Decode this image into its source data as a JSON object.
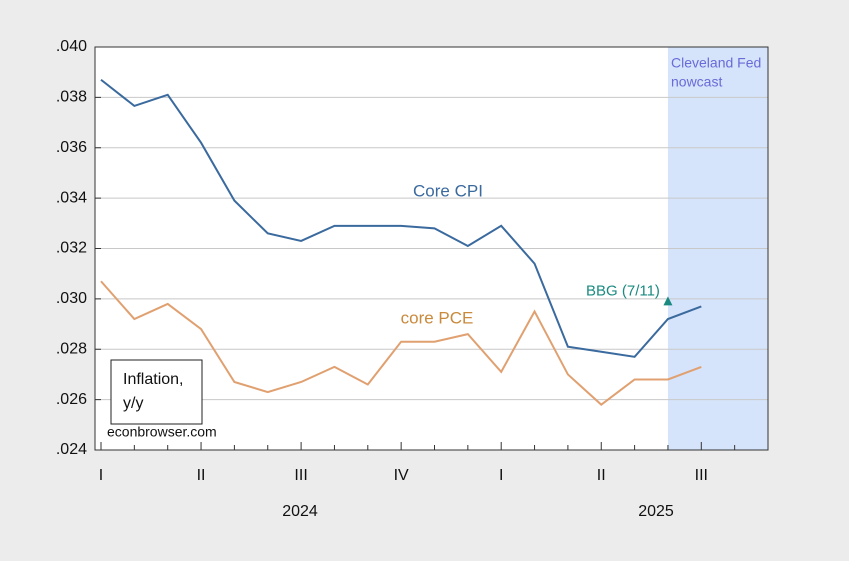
{
  "chart_data": {
    "type": "line",
    "categories": [
      "I",
      null,
      null,
      "II",
      null,
      null,
      "III",
      null,
      null,
      "IV",
      null,
      null,
      "I",
      null,
      null,
      "II",
      null,
      null,
      "III",
      null,
      null
    ],
    "year_labels": [
      "2024",
      "2025"
    ],
    "series": [
      {
        "name": "Core CPI",
        "color": "#3a6a9e",
        "values": [
          0.0387,
          0.03766,
          0.0381,
          0.0362,
          0.0339,
          0.0326,
          0.0323,
          0.0329,
          0.0329,
          0.0329,
          0.0328,
          0.0321,
          0.0329,
          0.0314,
          0.0281,
          0.0279,
          0.0277,
          0.0292,
          0.0297,
          null,
          null
        ]
      },
      {
        "name": "core PCE",
        "color": "#e0a070",
        "values": [
          0.0307,
          0.0292,
          0.0298,
          0.0288,
          0.0267,
          0.0263,
          0.0267,
          0.0273,
          0.0266,
          0.0283,
          0.0283,
          0.0286,
          0.0271,
          0.0295,
          0.027,
          0.0258,
          0.0268,
          0.0268,
          0.0273,
          null,
          null
        ]
      },
      {
        "name": "BBG (7/11)",
        "color": "#1a8a80",
        "values": [
          null,
          null,
          null,
          null,
          null,
          null,
          null,
          null,
          null,
          null,
          null,
          null,
          null,
          null,
          null,
          null,
          null,
          0.0299,
          null,
          null,
          null
        ]
      }
    ],
    "ylim": [
      0.024,
      0.04
    ],
    "yticks": [
      {
        "value": 0.024,
        "label": ".024"
      },
      {
        "value": 0.026,
        "label": ".026"
      },
      {
        "value": 0.028,
        "label": ".028"
      },
      {
        "value": 0.03,
        "label": ".030"
      },
      {
        "value": 0.032,
        "label": ".032"
      },
      {
        "value": 0.034,
        "label": ".034"
      },
      {
        "value": 0.036,
        "label": ".036"
      },
      {
        "value": 0.038,
        "label": ".038"
      },
      {
        "value": 0.04,
        "label": ".040"
      }
    ],
    "grid": true,
    "annotations": {
      "shade_label": [
        "Cleveland Fed",
        "nowcast"
      ],
      "box_label": [
        "Inflation,",
        "y/y"
      ],
      "source": "econbrowser.com"
    }
  }
}
